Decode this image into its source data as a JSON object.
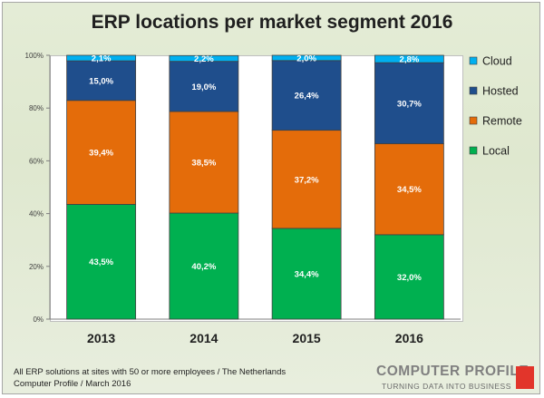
{
  "chart_data": {
    "type": "bar",
    "stacked": true,
    "title": "ERP locations per market segment 2016",
    "categories": [
      "2013",
      "2014",
      "2015",
      "2016"
    ],
    "series": [
      {
        "name": "Local",
        "color": "#00b050",
        "values": [
          43.5,
          40.2,
          34.4,
          32.0
        ],
        "labels": [
          "43,5%",
          "40,2%",
          "34,4%",
          "32,0%"
        ]
      },
      {
        "name": "Remote",
        "color": "#e46c0a",
        "values": [
          39.4,
          38.5,
          37.2,
          34.5
        ],
        "labels": [
          "39,4%",
          "38,5%",
          "37,2%",
          "34,5%"
        ]
      },
      {
        "name": "Hosted",
        "color": "#1f4e8c",
        "values": [
          15.0,
          19.0,
          26.4,
          30.7
        ],
        "labels": [
          "15,0%",
          "19,0%",
          "26,4%",
          "30,7%"
        ]
      },
      {
        "name": "Cloud",
        "color": "#00b0f0",
        "values": [
          2.1,
          2.2,
          2.0,
          2.8
        ],
        "labels": [
          "2,1%",
          "2,2%",
          "2,0%",
          "2,8%"
        ]
      }
    ],
    "ylim": [
      0,
      100
    ],
    "yticks": [
      0,
      20,
      40,
      60,
      80,
      100
    ],
    "ytick_labels": [
      "0%",
      "20%",
      "40%",
      "60%",
      "80%",
      "100%"
    ],
    "grid": false,
    "legend": "right"
  },
  "footer": {
    "line1": "All ERP solutions at sites with 50 or more employees  / The Netherlands",
    "line2": "Computer Profile / March 2016"
  },
  "logo": {
    "main": "COMPUTER PROFILE",
    "tagline": "TURNING DATA INTO BUSINESS"
  }
}
